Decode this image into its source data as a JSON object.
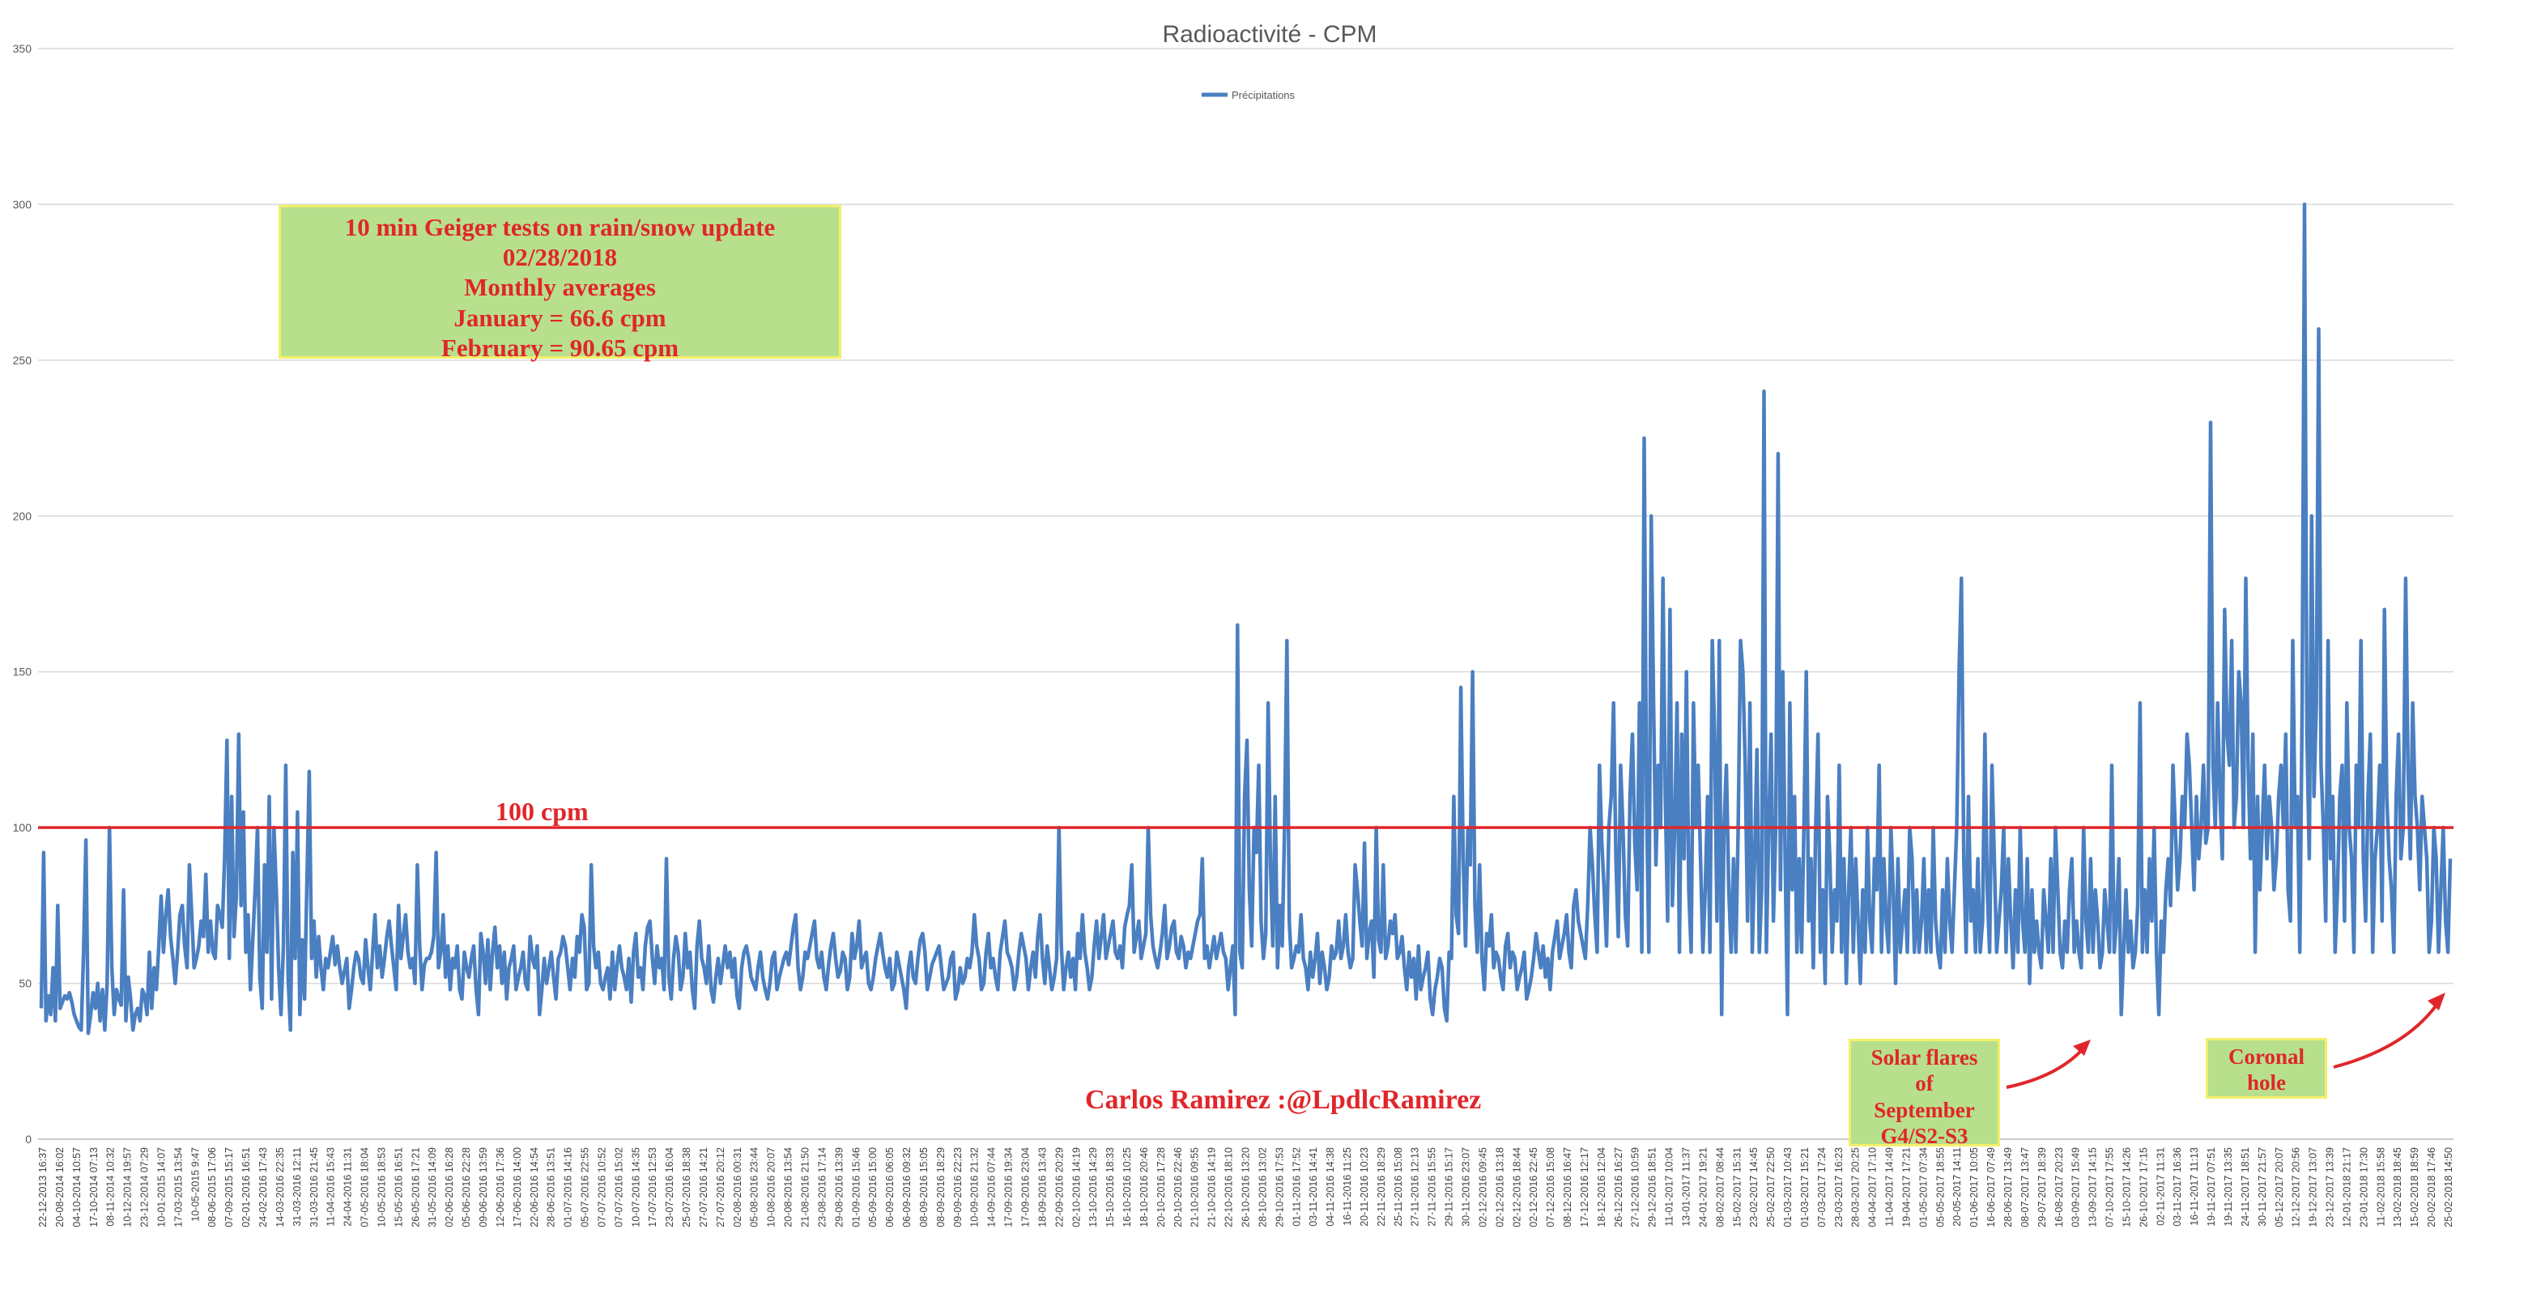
{
  "chart_data": {
    "type": "line",
    "title": "Radioactivité - CPM",
    "legend": {
      "entries": [
        "Précipitations"
      ],
      "placement": "top-center"
    },
    "ylim": [
      0,
      350
    ],
    "yticks": [
      0,
      50,
      100,
      150,
      200,
      250,
      300,
      350
    ],
    "grid": true,
    "series": [
      {
        "name": "Précipitations",
        "color": "#4a7fc1",
        "values": [
          42,
          92,
          38,
          46,
          40,
          55,
          38,
          75,
          42,
          44,
          46,
          45,
          47,
          44,
          40,
          38,
          36,
          35,
          60,
          96,
          34,
          40,
          47,
          42,
          50,
          38,
          48,
          35,
          50,
          100,
          55,
          40,
          48,
          45,
          43,
          80,
          38,
          52,
          45,
          35,
          40,
          42,
          38,
          48,
          46,
          40,
          60,
          42,
          55,
          48,
          62,
          78,
          60,
          72,
          80,
          65,
          58,
          50,
          60,
          72,
          75,
          62,
          55,
          88,
          72,
          55,
          58,
          62,
          70,
          65,
          85,
          60,
          70,
          60,
          58,
          75,
          72,
          68,
          90,
          128,
          58,
          110,
          65,
          78,
          130,
          75,
          105,
          60,
          72,
          48,
          64,
          80,
          100,
          52,
          42,
          88,
          60,
          110,
          45,
          100,
          80,
          55,
          40,
          62,
          120,
          52,
          35,
          92,
          58,
          105,
          40,
          64,
          45,
          82,
          118,
          58,
          70,
          52,
          65,
          55,
          48,
          58,
          55,
          60,
          65,
          56,
          62,
          55,
          50,
          54,
          58,
          42,
          48,
          55,
          60,
          58,
          52,
          50,
          64,
          55,
          48,
          60,
          72,
          55,
          62,
          52,
          58,
          65,
          70,
          62,
          55,
          48,
          75,
          58,
          65,
          72,
          60,
          55,
          58,
          50,
          88,
          62,
          48,
          56,
          58,
          58,
          60,
          65,
          92,
          55,
          60,
          72,
          52,
          62,
          48,
          58,
          55,
          62,
          48,
          45,
          60,
          55,
          52,
          58,
          62,
          48,
          40,
          66,
          60,
          50,
          64,
          48,
          60,
          68,
          55,
          62,
          50,
          60,
          45,
          55,
          58,
          62,
          48,
          52,
          55,
          60,
          50,
          48,
          65,
          58,
          55,
          62,
          40,
          48,
          58,
          50,
          55,
          60,
          52,
          45,
          58,
          60,
          65,
          62,
          55,
          48,
          58,
          52,
          65,
          60,
          72,
          68,
          48,
          50,
          88,
          62,
          55,
          60,
          50,
          48,
          52,
          55,
          45,
          60,
          48,
          56,
          62,
          55,
          52,
          48,
          58,
          44,
          60,
          66,
          52,
          55,
          48,
          62,
          68,
          70,
          58,
          50,
          62,
          55,
          58,
          48,
          90,
          52,
          45,
          58,
          65,
          60,
          48,
          52,
          66,
          55,
          60,
          48,
          42,
          62,
          70,
          58,
          55,
          50,
          62,
          48,
          44,
          52,
          58,
          50,
          56,
          62,
          55,
          60,
          52,
          58,
          46,
          42,
          55,
          60,
          62,
          58,
          52,
          50,
          48,
          55,
          60,
          52,
          48,
          45,
          50,
          58,
          60,
          48,
          52,
          55,
          58,
          60,
          56,
          62,
          68,
          72,
          55,
          48,
          52,
          60,
          58,
          62,
          66,
          70,
          58,
          55,
          60,
          52,
          48,
          56,
          62,
          66,
          58,
          52,
          54,
          60,
          58,
          48,
          52,
          66,
          58,
          62,
          70,
          55,
          58,
          60,
          50,
          48,
          52,
          58,
          62,
          66,
          60,
          55,
          52,
          58,
          48,
          50,
          60,
          56,
          52,
          48,
          42,
          55,
          60,
          52,
          50,
          58,
          64,
          66,
          60,
          48,
          52,
          56,
          58,
          60,
          62,
          55,
          48,
          50,
          52,
          58,
          60,
          45,
          48,
          55,
          50,
          52,
          58,
          55,
          60,
          72,
          62,
          58,
          48,
          50,
          60,
          66,
          55,
          58,
          52,
          48,
          60,
          65,
          70,
          60,
          58,
          55,
          48,
          52,
          60,
          66,
          62,
          58,
          48,
          55,
          60,
          52,
          65,
          72,
          58,
          50,
          62,
          55,
          48,
          52,
          58,
          100,
          62,
          48,
          55,
          60,
          52,
          58,
          48,
          66,
          58,
          72,
          60,
          55,
          48,
          52,
          62,
          70,
          58,
          65,
          72,
          58,
          62,
          66,
          70,
          60,
          58,
          62,
          55,
          68,
          72,
          75,
          88,
          60,
          65,
          70,
          58,
          62,
          66,
          100,
          72,
          62,
          58,
          55,
          60,
          66,
          75,
          58,
          62,
          68,
          70,
          60,
          58,
          65,
          62,
          55,
          60,
          58,
          62,
          66,
          70,
          72,
          90,
          58,
          62,
          55,
          60,
          65,
          58,
          62,
          66,
          60,
          58,
          48,
          55,
          62,
          40,
          165,
          60,
          55,
          110,
          128,
          80,
          62,
          100,
          92,
          120,
          70,
          58,
          66,
          140,
          88,
          62,
          110,
          55,
          75,
          62,
          100,
          160,
          70,
          55,
          58,
          62,
          60,
          72,
          58,
          55,
          48,
          60,
          52,
          58,
          66,
          50,
          60,
          55,
          48,
          52,
          62,
          58,
          60,
          70,
          58,
          62,
          72,
          60,
          55,
          58,
          88,
          80,
          70,
          62,
          95,
          58,
          66,
          70,
          52,
          100,
          64,
          60,
          88,
          58,
          62,
          70,
          66,
          72,
          58,
          60,
          65,
          55,
          48,
          60,
          52,
          58,
          45,
          62,
          48,
          52,
          55,
          60,
          45,
          40,
          48,
          52,
          58,
          55,
          42,
          38,
          60,
          58,
          110,
          72,
          66,
          145,
          90,
          62,
          100,
          88,
          150,
          75,
          60,
          88,
          58,
          48,
          66,
          62,
          72,
          55,
          60,
          58,
          52,
          48,
          62,
          66,
          55,
          60,
          58,
          48,
          52,
          55,
          60,
          45,
          48,
          52,
          58,
          66,
          60,
          55,
          62,
          52,
          58,
          48,
          60,
          65,
          70,
          58,
          62,
          66,
          72,
          60,
          55,
          75,
          80,
          70,
          66,
          62,
          58,
          75,
          100,
          88,
          72,
          60,
          120,
          95,
          80,
          62,
          100,
          110,
          140,
          90,
          65,
          120,
          100,
          72,
          62,
          110,
          130,
          95,
          80,
          140,
          60,
          225,
          110,
          60,
          200,
          140,
          88,
          120,
          100,
          180,
          110,
          70,
          170,
          75,
          100,
          140,
          60,
          130,
          90,
          150,
          80,
          60,
          140,
          100,
          120,
          90,
          60,
          80,
          110,
          60,
          160,
          130,
          70,
          160,
          40,
          100,
          120,
          80,
          60,
          90,
          60,
          100,
          160,
          150,
          120,
          70,
          140,
          60,
          90,
          125,
          60,
          80,
          240,
          60,
          100,
          130,
          70,
          100,
          220,
          80,
          150,
          90,
          40,
          140,
          80,
          110,
          60,
          90,
          60,
          100,
          150,
          70,
          90,
          55,
          100,
          130,
          60,
          80,
          50,
          110,
          90,
          60,
          80,
          70,
          120,
          60,
          90,
          50,
          80,
          100,
          60,
          90,
          70,
          50,
          80,
          60,
          100,
          70,
          60,
          90,
          80,
          120,
          60,
          90,
          70,
          60,
          100,
          80,
          50,
          90,
          60,
          70,
          80,
          60,
          100,
          90,
          60,
          80,
          60,
          70,
          90,
          60,
          80,
          60,
          100,
          70,
          60,
          55,
          80,
          60,
          90,
          70,
          60,
          80,
          100,
          150,
          180,
          90,
          60,
          110,
          70,
          80,
          60,
          90,
          60,
          70,
          130,
          80,
          60,
          120,
          90,
          60,
          70,
          80,
          100,
          60,
          90,
          70,
          55,
          80,
          60,
          100,
          70,
          60,
          90,
          50,
          80,
          60,
          70,
          60,
          55,
          80,
          70,
          60,
          90,
          60,
          100,
          80,
          60,
          55,
          70,
          60,
          80,
          90,
          60,
          70,
          60,
          55,
          100,
          70,
          60,
          90,
          60,
          80,
          70,
          55,
          60,
          80,
          70,
          60,
          120,
          60,
          70,
          90,
          40,
          60,
          80,
          60,
          70,
          55,
          60,
          75,
          140,
          60,
          80,
          60,
          90,
          70,
          100,
          60,
          40,
          70,
          60,
          80,
          90,
          75,
          120,
          100,
          80,
          90,
          110,
          100,
          130,
          120,
          100,
          80,
          110,
          90,
          100,
          120,
          95,
          100,
          230,
          120,
          100,
          140,
          110,
          90,
          170,
          130,
          120,
          160,
          100,
          110,
          150,
          140,
          100,
          180,
          120,
          90,
          130,
          60,
          110,
          80,
          100,
          120,
          90,
          110,
          100,
          80,
          90,
          110,
          120,
          100,
          130,
          80,
          70,
          160,
          100,
          110,
          60,
          140,
          300,
          130,
          90,
          200,
          110,
          140,
          260,
          120,
          100,
          70,
          160,
          90,
          110,
          60,
          80,
          110,
          120,
          70,
          140,
          100,
          90,
          60,
          120,
          100,
          160,
          90,
          70,
          110,
          130,
          60,
          90,
          100,
          120,
          70,
          170,
          110,
          90,
          80,
          60,
          110,
          130,
          90,
          100,
          180,
          120,
          90,
          140,
          110,
          100,
          80,
          110,
          100,
          90,
          60,
          70,
          100,
          90,
          60,
          80,
          100,
          70,
          60,
          90
        ]
      }
    ],
    "annotations": {
      "info_box": {
        "lines": [
          "10 min Geiger tests on rain/snow update",
          "02/28/2018",
          "Monthly averages",
          "January = 66.6 cpm",
          "February = 90.65 cpm"
        ]
      },
      "reference_line": {
        "value": 100,
        "label": "100 cpm",
        "color": "#e0262a"
      },
      "credit": "Carlos Ramirez :@LpdlcRamirez",
      "solar_flares": {
        "lines": [
          "Solar flares",
          "of",
          "September",
          "G4/S2-S3"
        ]
      },
      "coronal_hole": {
        "lines": [
          "Coronal",
          "hole"
        ]
      }
    },
    "x_tick_labels": [
      "22-12-2013 16:37",
      "20-08-2014 16:02",
      "04-10-2014 10:57",
      "17-10-2014 07:13",
      "08-11-2014 10:32",
      "10-12-2014 19:57",
      "23-12-2014 07:29",
      "10-01-2015 14:07",
      "17-03-2015 13:54",
      "10-05-2015 9:47",
      "08-06-2015 17:06",
      "07-09-2015 15:17",
      "02-01-2016 16:51",
      "24-02-2016 17:43",
      "14-03-2016 22:35",
      "31-03-2016 12:11",
      "31-03-2016 21:45",
      "11-04-2016 15:43",
      "24-04-2016 11:31",
      "07-05-2016 18:04",
      "10-05-2016 18:53",
      "15-05-2016 16:51",
      "26-05-2016 17:21",
      "31-05-2016 14:09",
      "02-06-2016 16:28",
      "05-06-2016 22:28",
      "09-06-2016 13:59",
      "12-06-2016 17:36",
      "17-06-2016 14:00",
      "22-06-2016 14:54",
      "28-06-2016 13:51",
      "01-07-2016 14:16",
      "05-07-2016 22:55",
      "07-07-2016 10:52",
      "07-07-2016 15:02",
      "10-07-2016 14:35",
      "17-07-2016 12:53",
      "23-07-2016 16:04",
      "25-07-2016 18:38",
      "27-07-2016 14:21",
      "27-07-2016 20:12",
      "02-08-2016 00:31",
      "05-08-2016 23:44",
      "10-08-2016 20:07",
      "20-08-2016 13:54",
      "21-08-2016 21:50",
      "23-08-2016 17:14",
      "29-08-2016 13:39",
      "01-09-2016 15:46",
      "05-09-2016 15:00",
      "06-09-2016 06:05",
      "06-09-2016 09:32",
      "08-09-2016 15:05",
      "08-09-2016 18:29",
      "09-09-2016 22:23",
      "10-09-2016 21:32",
      "14-09-2016 07:44",
      "17-09-2016 19:34",
      "17-09-2016 23:04",
      "18-09-2016 13:43",
      "22-09-2016 20:29",
      "02-10-2016 14:19",
      "13-10-2016 14:29",
      "15-10-2016 18:33",
      "16-10-2016 10:25",
      "18-10-2016 20:46",
      "20-10-2016 17:28",
      "20-10-2016 22:46",
      "21-10-2016 09:55",
      "21-10-2016 14:19",
      "22-10-2016 18:10",
      "26-10-2016 13:20",
      "28-10-2016 13:02",
      "29-10-2016 17:53",
      "01-11-2016 17:52",
      "03-11-2016 14:41",
      "04-11-2016 14:38",
      "16-11-2016 11:25",
      "20-11-2016 10:23",
      "22-11-2016 18:29",
      "25-11-2016 15:08",
      "27-11-2016 12:13",
      "27-11-2016 15:55",
      "29-11-2016 15:17",
      "30-11-2016 23:07",
      "02-12-2016 09:45",
      "02-12-2016 13:18",
      "02-12-2016 18:44",
      "02-12-2016 22:45",
      "07-12-2016 15:08",
      "08-12-2016 16:47",
      "17-12-2016 12:17",
      "18-12-2016 12:04",
      "26-12-2016 16:27",
      "27-12-2016 10:59",
      "29-12-2016 18:51",
      "11-01-2017 10:04",
      "13-01-2017 11:37",
      "24-01-2017 19:21",
      "08-02-2017 08:44",
      "15-02-2017 15:31",
      "23-02-2017 14:45",
      "25-02-2017 22:50",
      "01-03-2017 10:43",
      "01-03-2017 15:21",
      "07-03-2017 17:24",
      "23-03-2017 16:23",
      "28-03-2017 20:25",
      "04-04-2017 17:10",
      "11-04-2017 14:49",
      "19-04-2017 17:21",
      "01-05-2017 07:34",
      "05-05-2017 18:55",
      "20-05-2017 14:11",
      "01-06-2017 10:05",
      "16-06-2017 07:49",
      "28-06-2017 13:49",
      "08-07-2017 13:47",
      "29-07-2017 18:39",
      "16-08-2017 20:23",
      "03-09-2017 15:49",
      "13-09-2017 14:15",
      "07-10-2017 17:55",
      "15-10-2017 14:26",
      "26-10-2017 17:15",
      "02-11-2017 11:31",
      "03-11-2017 16:36",
      "16-11-2017 11:13",
      "19-11-2017 07:51",
      "19-11-2017 13:35",
      "24-11-2017 18:51",
      "30-11-2017 21:57",
      "05-12-2017 20:07",
      "12-12-2017 20:56",
      "19-12-2017 13:07",
      "23-12-2017 13:39",
      "12-01-2018 21:17",
      "23-01-2018 17:30",
      "11-02-2018 15:58",
      "13-02-2018 18:45",
      "15-02-2018 18:59",
      "20-02-2018 17:46",
      "25-02-2018 14:50"
    ]
  }
}
